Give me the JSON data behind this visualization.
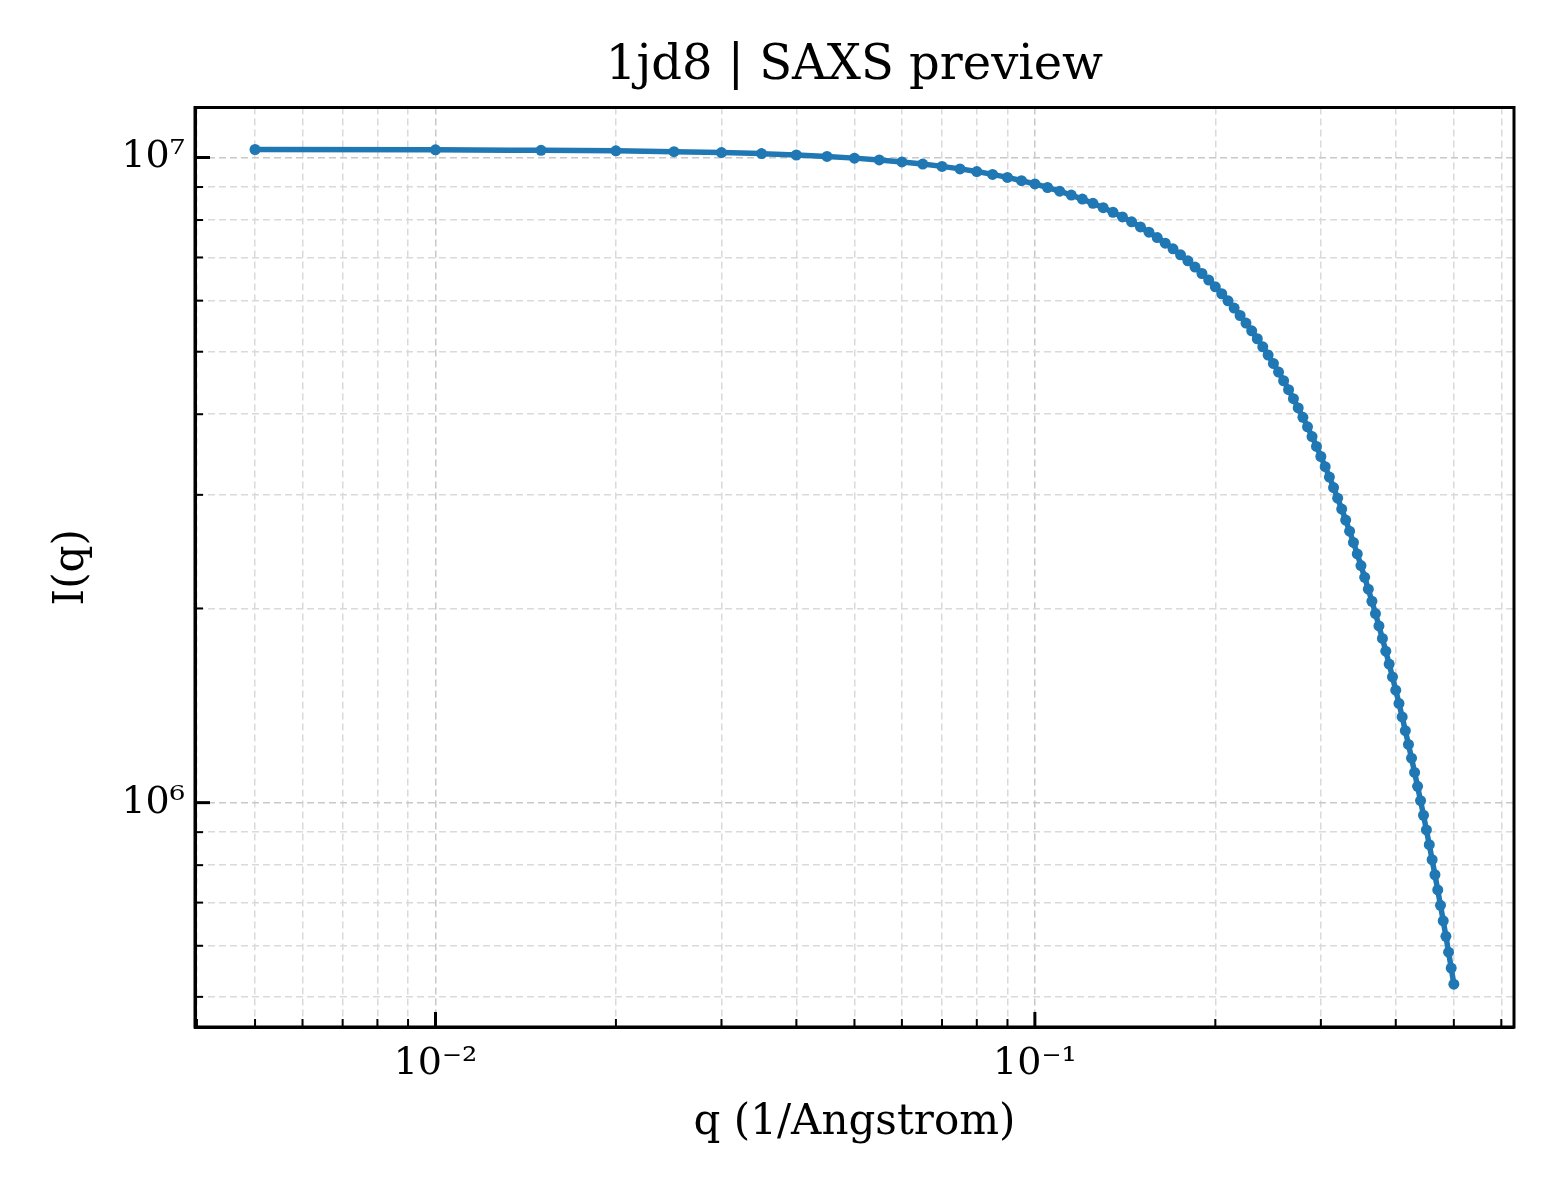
{
  "chart_data": {
    "type": "line",
    "title": "1jd8 | SAXS preview",
    "xlabel": "q (1/Angstrom)",
    "ylabel": "I(q)",
    "log": "xy",
    "grid": true,
    "marker": "circle",
    "line_style": "solid",
    "x": [
      0.005,
      0.01,
      0.015,
      0.02,
      0.025,
      0.03,
      0.035,
      0.04,
      0.045,
      0.05,
      0.055,
      0.06,
      0.065,
      0.07,
      0.075,
      0.08,
      0.085,
      0.09,
      0.095,
      0.1,
      0.105,
      0.11,
      0.115,
      0.12,
      0.125,
      0.13,
      0.135,
      0.14,
      0.145,
      0.15,
      0.155,
      0.16,
      0.165,
      0.17,
      0.175,
      0.18,
      0.185,
      0.19,
      0.195,
      0.2,
      0.205,
      0.21,
      0.215,
      0.22,
      0.225,
      0.23,
      0.235,
      0.24,
      0.245,
      0.25,
      0.255,
      0.26,
      0.265,
      0.27,
      0.275,
      0.28,
      0.285,
      0.29,
      0.295,
      0.3,
      0.305,
      0.31,
      0.315,
      0.32,
      0.325,
      0.33,
      0.335,
      0.34,
      0.345,
      0.35,
      0.355,
      0.36,
      0.365,
      0.37,
      0.375,
      0.38,
      0.385,
      0.39,
      0.395,
      0.4,
      0.405,
      0.41,
      0.415,
      0.42,
      0.425,
      0.43,
      0.435,
      0.44,
      0.445,
      0.45,
      0.455,
      0.46,
      0.465,
      0.47,
      0.475,
      0.48,
      0.485,
      0.49,
      0.495,
      0.5
    ],
    "series": [
      {
        "color": "#1f77b4",
        "values": [
          10290000,
          10280000,
          10260000,
          10240000,
          10210000,
          10180000,
          10140000,
          10090000,
          10040000,
          9978000,
          9914000,
          9844000,
          9768000,
          9688000,
          9602000,
          9511000,
          9415000,
          9314000,
          9208000,
          9099000,
          8985000,
          8867000,
          8745000,
          8620000,
          8491000,
          8360000,
          8225000,
          8088000,
          7948000,
          7805000,
          7661000,
          7515000,
          7367000,
          7218000,
          7067000,
          6916000,
          6763000,
          6610000,
          6457000,
          6303000,
          6149000,
          5996000,
          5843000,
          5690000,
          5538000,
          5387000,
          5237000,
          5088000,
          4941000,
          4795000,
          4650000,
          4508000,
          4367000,
          4228000,
          4091000,
          3956000,
          3824000,
          3694000,
          3566000,
          3440000,
          3317000,
          3197000,
          3079000,
          2964000,
          2852000,
          2742000,
          2635000,
          2531000,
          2430000,
          2331000,
          2235000,
          2142000,
          2052000,
          1964000,
          1879000,
          1797000,
          1717000,
          1640000,
          1566000,
          1494000,
          1425000,
          1358000,
          1293000,
          1231000,
          1172000,
          1114000,
          1060000,
          1007000,
          956000,
          907200,
          860600,
          815900,
          773100,
          732300,
          693200,
          655900,
          620600,
          586500,
          554100,
          523200
        ]
      }
    ],
    "xlim": [
      0.00397,
      0.63
    ],
    "ylim": [
      449000,
      11950000
    ],
    "xticks": [
      {
        "value": 0.004,
        "label": null
      },
      {
        "value": 0.005,
        "label": null
      },
      {
        "value": 0.006,
        "label": null
      },
      {
        "value": 0.007,
        "label": null
      },
      {
        "value": 0.008,
        "label": null
      },
      {
        "value": 0.009,
        "label": null
      },
      {
        "value": 0.01,
        "label": "10⁻²"
      },
      {
        "value": 0.02,
        "label": null
      },
      {
        "value": 0.03,
        "label": null
      },
      {
        "value": 0.04,
        "label": null
      },
      {
        "value": 0.05,
        "label": null
      },
      {
        "value": 0.06,
        "label": null
      },
      {
        "value": 0.07,
        "label": null
      },
      {
        "value": 0.08,
        "label": null
      },
      {
        "value": 0.09,
        "label": null
      },
      {
        "value": 0.1,
        "label": "10⁻¹"
      },
      {
        "value": 0.2,
        "label": null
      },
      {
        "value": 0.3,
        "label": null
      },
      {
        "value": 0.4,
        "label": null
      },
      {
        "value": 0.5,
        "label": null
      },
      {
        "value": 0.6,
        "label": null
      }
    ],
    "yticks": [
      {
        "value": 500000,
        "label": null
      },
      {
        "value": 600000,
        "label": null
      },
      {
        "value": 700000,
        "label": null
      },
      {
        "value": 800000,
        "label": null
      },
      {
        "value": 900000,
        "label": null
      },
      {
        "value": 1000000,
        "label": "10⁶"
      },
      {
        "value": 2000000,
        "label": null
      },
      {
        "value": 3000000,
        "label": null
      },
      {
        "value": 4000000,
        "label": null
      },
      {
        "value": 5000000,
        "label": null
      },
      {
        "value": 6000000,
        "label": null
      },
      {
        "value": 7000000,
        "label": null
      },
      {
        "value": 8000000,
        "label": null
      },
      {
        "value": 9000000,
        "label": null
      },
      {
        "value": 10000000,
        "label": "10⁷"
      }
    ]
  }
}
